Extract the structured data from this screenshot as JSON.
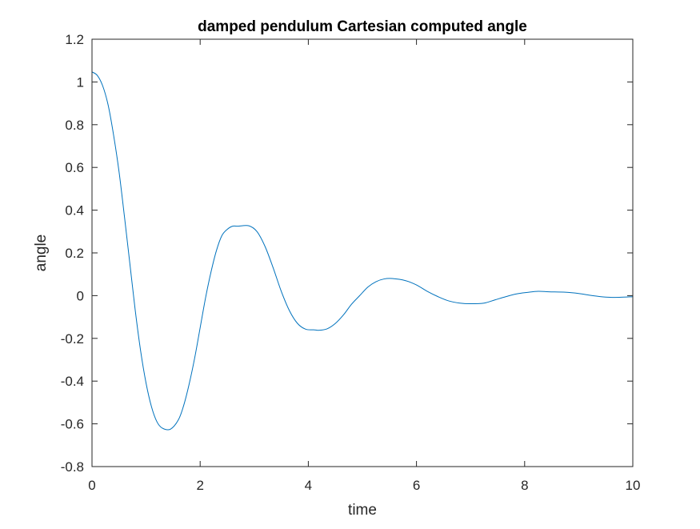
{
  "chart_data": {
    "type": "line",
    "title": "damped pendulum Cartesian computed angle",
    "xlabel": "time",
    "ylabel": "angle",
    "xlim": [
      0,
      10
    ],
    "ylim": [
      -0.8,
      1.2
    ],
    "xticks": [
      0,
      2,
      4,
      6,
      8,
      10
    ],
    "yticks": [
      -0.8,
      -0.6,
      -0.4,
      -0.2,
      0,
      0.2,
      0.4,
      0.6,
      0.8,
      1,
      1.2
    ],
    "xtick_labels": [
      "0",
      "2",
      "4",
      "6",
      "8",
      "10"
    ],
    "ytick_labels": [
      "-0.8",
      "-0.6",
      "-0.4",
      "-0.2",
      "0",
      "0.2",
      "0.4",
      "0.6",
      "0.8",
      "1",
      "1.2"
    ],
    "grid": false,
    "legend": "none",
    "series_color": "#0072BD",
    "series": [
      {
        "x": [
          0,
          0.1,
          0.2,
          0.3,
          0.4,
          0.5,
          0.6,
          0.7,
          0.8,
          0.9,
          1.0,
          1.1,
          1.2,
          1.3,
          1.45,
          1.6,
          1.7,
          1.8,
          1.9,
          2.0,
          2.1,
          2.2,
          2.3,
          2.4,
          2.5,
          2.6,
          2.7,
          2.9,
          3.05,
          3.2,
          3.35,
          3.5,
          3.65,
          3.8,
          3.95,
          4.1,
          4.2,
          4.35,
          4.5,
          4.65,
          4.8,
          4.95,
          5.1,
          5.25,
          5.4,
          5.55,
          5.8,
          6.0,
          6.2,
          6.4,
          6.6,
          6.8,
          7.0,
          7.25,
          7.45,
          7.65,
          7.85,
          8.05,
          8.25,
          8.45,
          8.75,
          9.0,
          9.25,
          9.5,
          9.75,
          10.0
        ],
        "y": [
          1.047,
          1.03,
          0.98,
          0.89,
          0.75,
          0.58,
          0.37,
          0.15,
          -0.07,
          -0.26,
          -0.41,
          -0.52,
          -0.59,
          -0.62,
          -0.625,
          -0.58,
          -0.51,
          -0.41,
          -0.29,
          -0.15,
          -0.01,
          0.11,
          0.21,
          0.28,
          0.31,
          0.325,
          0.325,
          0.327,
          0.3,
          0.23,
          0.13,
          0.02,
          -0.07,
          -0.13,
          -0.157,
          -0.16,
          -0.162,
          -0.155,
          -0.13,
          -0.09,
          -0.04,
          0.0,
          0.04,
          0.065,
          0.078,
          0.08,
          0.07,
          0.05,
          0.02,
          -0.005,
          -0.025,
          -0.035,
          -0.038,
          -0.035,
          -0.02,
          -0.005,
          0.008,
          0.015,
          0.02,
          0.018,
          0.016,
          0.01,
          0.0,
          -0.007,
          -0.008,
          -0.005
        ]
      }
    ]
  }
}
